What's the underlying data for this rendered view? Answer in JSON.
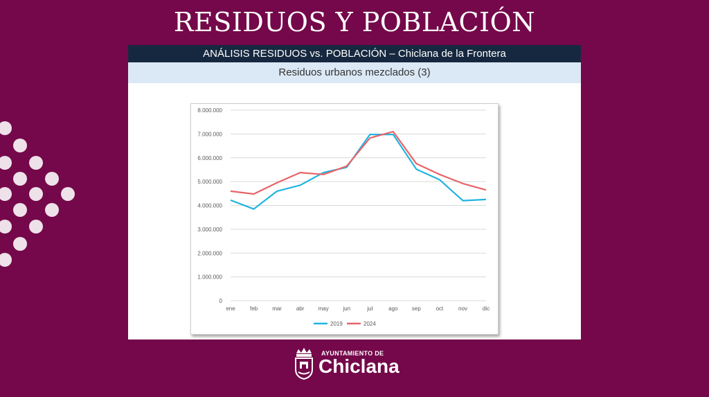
{
  "slide": {
    "title": "RESIDUOS Y POBLACIÓN"
  },
  "panel": {
    "header": "ANÁLISIS RESIDUOS vs. POBLACIÓN – Chiclana de la Frontera",
    "subtitle": "Residuos urbanos mezclados (3)"
  },
  "logo": {
    "line1": "AYUNTAMIENTO DE",
    "line2": "Chiclana"
  },
  "colors": {
    "background": "#74084a",
    "header": "#16283f",
    "subheader": "#dbe8f5",
    "series_2019": "#20b4e0",
    "series_2024": "#e86468"
  },
  "chart_data": {
    "type": "line",
    "categories": [
      "ene",
      "feb",
      "mar",
      "abr",
      "may",
      "jun",
      "jul",
      "ago",
      "sep",
      "oct",
      "nov",
      "dic"
    ],
    "ylim": [
      0,
      8000000
    ],
    "yticks": [
      "0",
      "1.000.000",
      "2.000.000",
      "3.000.000",
      "4.000.000",
      "5.000.000",
      "6.000.000",
      "7.000.000",
      "8.000.000"
    ],
    "grid": true,
    "legend": "bottom",
    "series": [
      {
        "name": "2019",
        "color": "#20b4e0",
        "values": [
          4220000,
          3850000,
          4600000,
          4850000,
          5380000,
          5600000,
          6980000,
          6980000,
          5520000,
          5080000,
          4200000,
          4250000
        ]
      },
      {
        "name": "2024",
        "color": "#e86468",
        "values": [
          4600000,
          4480000,
          4950000,
          5380000,
          5300000,
          5650000,
          6830000,
          7100000,
          5750000,
          5300000,
          4920000,
          4650000
        ]
      }
    ]
  }
}
